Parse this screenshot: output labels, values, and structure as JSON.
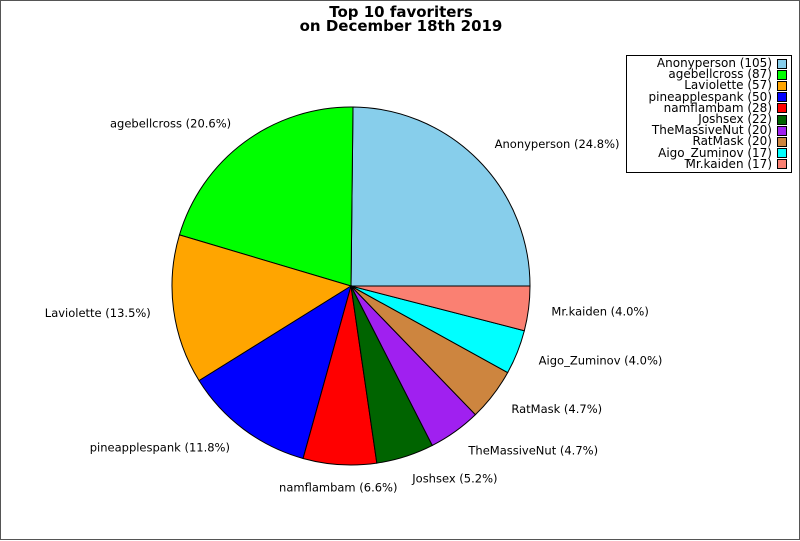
{
  "chart_data": {
    "type": "pie",
    "title": [
      "Top 10 favoriters",
      "on December 18th 2019"
    ],
    "slices": [
      {
        "name": "Anonyperson",
        "value": 105,
        "percent_label": "Anonyperson (24.8%)",
        "legend_label": "Anonyperson (105)",
        "color": "#87ceeb"
      },
      {
        "name": "agebellcross",
        "value": 87,
        "percent_label": "agebellcross (20.6%)",
        "legend_label": "agebellcross (87)",
        "color": "#00ff00"
      },
      {
        "name": "Laviolette",
        "value": 57,
        "percent_label": "Laviolette (13.5%)",
        "legend_label": "Laviolette (57)",
        "color": "#ffa500"
      },
      {
        "name": "pineapplespank",
        "value": 50,
        "percent_label": "pineapplespank (11.8%)",
        "legend_label": "pineapplespank (50)",
        "color": "#0000ff"
      },
      {
        "name": "namflambam",
        "value": 28,
        "percent_label": "namflambam (6.6%)",
        "legend_label": "namflambam (28)",
        "color": "#ff0000"
      },
      {
        "name": "Joshsex",
        "value": 22,
        "percent_label": "Joshsex (5.2%)",
        "legend_label": "Joshsex (22)",
        "color": "#006400"
      },
      {
        "name": "TheMassiveNut",
        "value": 20,
        "percent_label": "TheMassiveNut (4.7%)",
        "legend_label": "TheMassiveNut (20)",
        "color": "#a020f0"
      },
      {
        "name": "RatMask",
        "value": 20,
        "percent_label": "RatMask (4.7%)",
        "legend_label": "RatMask (20)",
        "color": "#cd853f"
      },
      {
        "name": "Aigo_Zuminov",
        "value": 17,
        "percent_label": "Aigo_Zuminov (4.0%)",
        "legend_label": "Aigo_Zuminov (17)",
        "color": "#00ffff"
      },
      {
        "name": "Mr.kaiden",
        "value": 17,
        "percent_label": "Mr.kaiden (4.0%)",
        "legend_label": "Mr.kaiden (17)",
        "color": "#fa8072"
      }
    ],
    "legend_position": "top-right",
    "start": "right (3 o'clock)",
    "direction": "counterclockwise"
  }
}
